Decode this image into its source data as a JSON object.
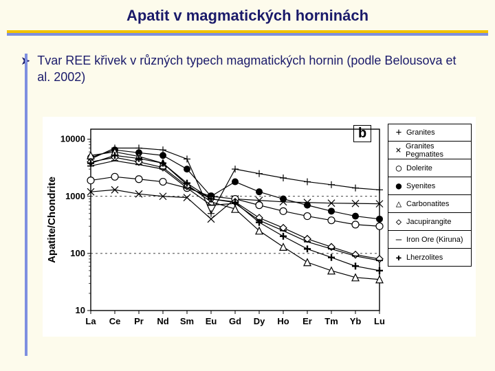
{
  "title": "Apatit v magmatických horninách",
  "bullet": "Tvar REE křivek v různých typech magmatických hornin (podle Belousova et al. 2002)",
  "panel_label": "b",
  "chart": {
    "type": "line",
    "x_categories": [
      "La",
      "Ce",
      "Pr",
      "Nd",
      "Sm",
      "Eu",
      "Gd",
      "Dy",
      "Ho",
      "Er",
      "Tm",
      "Yb",
      "Lu"
    ],
    "y_ticks": [
      10,
      100,
      1000,
      10000
    ],
    "ylim": [
      10,
      15000
    ],
    "y_scale": "log",
    "y_label": "Apatite/Chondrite",
    "plot_bg": "#ffffff",
    "axis_color": "#000000",
    "grid_color": "#000000",
    "grid_dash": "3 4",
    "line_color": "#000000",
    "line_width": 1.2,
    "tick_fontsize": 13,
    "label_fontsize": 15,
    "marker_size": 5,
    "series": [
      {
        "name": "Granites",
        "marker": "plus",
        "values": [
          4500,
          7000,
          7000,
          6500,
          4500,
          500,
          3000,
          2500,
          2100,
          1800,
          1600,
          1400,
          1300
        ]
      },
      {
        "name": "Granites Pegmatites",
        "marker": "x",
        "values": [
          1200,
          1300,
          1100,
          1000,
          950,
          400,
          900,
          850,
          800,
          780,
          760,
          750,
          740
        ]
      },
      {
        "name": "Dolerite",
        "marker": "open-circle",
        "values": [
          1900,
          2200,
          2000,
          1800,
          1400,
          1000,
          900,
          700,
          550,
          450,
          380,
          320,
          300
        ]
      },
      {
        "name": "Syenites",
        "marker": "filled-circle",
        "values": [
          4800,
          6500,
          5800,
          5200,
          3000,
          1000,
          1800,
          1200,
          900,
          700,
          550,
          450,
          400
        ]
      },
      {
        "name": "Carbonatites",
        "marker": "open-triangle",
        "values": [
          5200,
          6000,
          5000,
          3800,
          1600,
          800,
          600,
          250,
          130,
          70,
          50,
          38,
          35
        ]
      },
      {
        "name": "Jacupirangite",
        "marker": "open-diamond",
        "values": [
          4000,
          4800,
          4000,
          3200,
          1500,
          900,
          800,
          420,
          280,
          180,
          130,
          95,
          80
        ]
      },
      {
        "name": "Iron Ore (Kiruna)",
        "marker": "dash",
        "values": [
          3400,
          4200,
          3600,
          3000,
          1400,
          700,
          750,
          380,
          250,
          160,
          120,
          90,
          75
        ]
      },
      {
        "name": "Lherzolites",
        "marker": "bold-plus",
        "values": [
          3800,
          5200,
          4600,
          3800,
          1700,
          900,
          780,
          350,
          200,
          120,
          85,
          60,
          50
        ]
      }
    ]
  },
  "colors": {
    "page_bg": "#fdfbec",
    "title_text": "#1a1a6a",
    "rule_top": "#f2c200",
    "rule_bottom": "#7e8fe0"
  }
}
